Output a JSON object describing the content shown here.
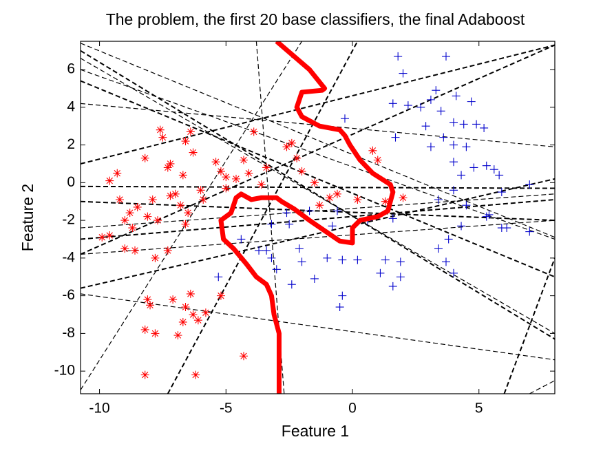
{
  "chart_data": {
    "type": "scatter",
    "title": "The problem, the first 20 base classifiers, the final Adaboost",
    "xlabel": "Feature 1",
    "ylabel": "Feature 2",
    "xlim": [
      -10.75,
      8
    ],
    "ylim": [
      -11.2,
      7.5
    ],
    "xticks": [
      -10,
      -5,
      0,
      5
    ],
    "yticks": [
      -10,
      -8,
      -6,
      -4,
      -2,
      0,
      2,
      4,
      6
    ],
    "series": [
      {
        "color": "#ff0000",
        "marker": "asterisk",
        "x": [
          -9.6,
          -9.3,
          -9.2,
          -9.0,
          -8.8,
          -8.7,
          -8.5,
          -8.6,
          -9.0,
          -9.9,
          -9.6,
          -8.2,
          -8.1,
          -7.9,
          -7.7,
          -7.6,
          -7.5,
          -7.3,
          -7.2,
          -7.0,
          -7.2,
          -6.8,
          -6.7,
          -6.6,
          -6.6,
          -6.4,
          -6.3,
          -6.0,
          -5.9,
          -5.4,
          -5.2,
          -5.0,
          -4.6,
          -4.3,
          -4.1,
          -3.9,
          -3.6,
          -3.4,
          -2.6,
          -2.4,
          -2.2,
          -2.0,
          -1.5,
          -1.3,
          -0.9,
          -0.6,
          0.2,
          0.8,
          1.0,
          1.3,
          2.0,
          -7.8,
          -7.3,
          -8.1,
          -8.0,
          -8.2,
          -7.8,
          -7.1,
          -6.6,
          -6.7,
          -6.9,
          -6.4,
          -6.3,
          -6.1,
          -5.8,
          -6.2,
          -8.2,
          -5.2,
          -4.3,
          -6.5,
          -5.0
        ],
        "y": [
          0.1,
          0.5,
          -0.9,
          -2.0,
          -1.6,
          -2.4,
          -1.3,
          -3.6,
          -3.5,
          -2.9,
          -2.8,
          1.3,
          -1.8,
          -0.9,
          -2.0,
          2.8,
          2.4,
          0.8,
          -0.7,
          -0.6,
          1.0,
          -1.2,
          0.4,
          -2.2,
          2.2,
          2.7,
          1.6,
          -0.4,
          -0.9,
          1.1,
          0.6,
          0.3,
          0.2,
          1.2,
          0.5,
          2.7,
          -0.1,
          0.8,
          1.9,
          2.1,
          1.3,
          0.6,
          0.0,
          -1.2,
          -0.8,
          -0.6,
          -0.9,
          1.7,
          1.2,
          -1.0,
          -0.8,
          -4.0,
          -3.6,
          -6.2,
          -6.5,
          -7.8,
          -8.0,
          -6.2,
          -6.6,
          -7.4,
          -8.1,
          -5.9,
          -7.0,
          -7.3,
          -6.9,
          -10.2,
          -10.2,
          -6.0,
          -9.2,
          -1.6,
          -0.3
        ]
      },
      {
        "color": "#0000cc",
        "marker": "plus",
        "x": [
          1.8,
          2.0,
          3.7,
          3.3,
          4.1,
          4.7,
          1.6,
          2.2,
          2.7,
          3.1,
          3.5,
          3.6,
          4.0,
          4.4,
          4.9,
          5.2,
          2.9,
          -0.3,
          1.7,
          3.1,
          4.0,
          4.5,
          4.0,
          4.3,
          4.8,
          5.3,
          5.6,
          5.8,
          5.9,
          7.0,
          4.0,
          3.4,
          4.5,
          5.4,
          5.9,
          4.3,
          3.8,
          3.4,
          3.7,
          4.0,
          1.9,
          1.3,
          1.1,
          1.9,
          1.6,
          0.2,
          -0.4,
          -1.0,
          -1.5,
          -2.1,
          -2.0,
          -2.4,
          -3.2,
          -3.4,
          -3.7,
          -3.2,
          -4.4,
          -2.5,
          -2.6,
          -1.7,
          -0.6,
          -0.4,
          -0.5,
          -0.8,
          0.6,
          1.6,
          5.3,
          7.0,
          6.1,
          -5.3,
          -3.0
        ],
        "y": [
          6.7,
          5.8,
          6.7,
          4.9,
          4.6,
          4.3,
          4.2,
          4.1,
          4.0,
          4.4,
          3.8,
          2.4,
          3.2,
          3.1,
          3.1,
          2.9,
          3.0,
          3.4,
          2.4,
          1.9,
          2.0,
          1.9,
          1.1,
          0.4,
          0.8,
          0.9,
          0.7,
          0.4,
          -0.5,
          -0.1,
          -0.4,
          -0.9,
          -1.2,
          -1.7,
          -2.4,
          -2.3,
          -3.0,
          -3.5,
          -4.2,
          -4.8,
          -4.2,
          -4.1,
          -4.8,
          -5.0,
          -5.5,
          -4.1,
          -4.1,
          -4.0,
          -5.1,
          -3.5,
          -4.2,
          -5.4,
          -4.0,
          -3.6,
          -3.6,
          -2.2,
          -3.0,
          -2.2,
          -1.6,
          -1.5,
          -1.5,
          -6.0,
          -6.6,
          -2.3,
          -2.0,
          -1.9,
          -1.8,
          -2.6,
          -2.4,
          -5.0,
          -4.6
        ]
      }
    ],
    "classifiers": {
      "color": "#000000",
      "lines": [
        {
          "x": [
            -10.75,
            8
          ],
          "y": [
            1.0,
            7.3
          ]
        },
        {
          "x": [
            -10.75,
            8
          ],
          "y": [
            4.2,
            1.9
          ]
        },
        {
          "x": [
            -10.75,
            8
          ],
          "y": [
            -0.2,
            -0.3
          ]
        },
        {
          "x": [
            -10.75,
            8
          ],
          "y": [
            -2.4,
            -0.6
          ]
        },
        {
          "x": [
            -10.75,
            8
          ],
          "y": [
            -3.0,
            -0.9
          ]
        },
        {
          "x": [
            -10.75,
            8
          ],
          "y": [
            -3.8,
            -2.0
          ]
        },
        {
          "x": [
            -10.75,
            8
          ],
          "y": [
            -5.6,
            0.2
          ]
        },
        {
          "x": [
            -10.75,
            8
          ],
          "y": [
            -5.9,
            -9.4
          ]
        },
        {
          "x": [
            -10.75,
            8
          ],
          "y": [
            7.0,
            -8.3
          ]
        },
        {
          "x": [
            -10.75,
            8
          ],
          "y": [
            6.0,
            -3.0
          ]
        },
        {
          "x": [
            -10.75,
            8
          ],
          "y": [
            5.4,
            -5.0
          ]
        },
        {
          "x": [
            -10.75,
            8
          ],
          "y": [
            7.4,
            -2.9
          ]
        },
        {
          "x": [
            -10.75,
            8
          ],
          "y": [
            -3.8,
            7.3
          ]
        },
        {
          "x": [
            -3.8,
            -2.7
          ],
          "y": [
            7.5,
            -11.2
          ]
        },
        {
          "x": [
            -7.3,
            0.2
          ],
          "y": [
            -11.2,
            7.5
          ]
        },
        {
          "x": [
            -10.75,
            -2.0
          ],
          "y": [
            -11.0,
            7.5
          ]
        },
        {
          "x": [
            6.0,
            8
          ],
          "y": [
            -11.2,
            -4.0
          ]
        },
        {
          "x": [
            7.0,
            8
          ],
          "y": [
            -11.2,
            -10.5
          ]
        },
        {
          "x": [
            -10.75,
            8
          ],
          "y": [
            -1.0,
            -2.0
          ]
        },
        {
          "x": [
            -10.75,
            8
          ],
          "y": [
            6.6,
            -8.0
          ]
        }
      ]
    },
    "boundary": {
      "color": "#ff0000",
      "x": [
        -3.0,
        -1.7,
        -1.1,
        -1.2,
        -2.0,
        -2.2,
        -2.0,
        -1.3,
        -0.5,
        -0.3,
        -0.1,
        0.3,
        0.8,
        1.5,
        1.6,
        1.4,
        1.0,
        0.3,
        0.0,
        0.0,
        -0.5,
        -1.7,
        -2.3,
        -2.8,
        -3.0,
        -3.6,
        -4.0,
        -4.4,
        -4.6,
        -4.8,
        -5.2,
        -5.1,
        -4.7,
        -4.2,
        -3.8,
        -3.4,
        -3.2,
        -3.1,
        -2.9,
        -2.9,
        -2.9
      ],
      "y": [
        7.5,
        6.0,
        5.0,
        4.9,
        4.8,
        4.0,
        3.5,
        3.0,
        2.8,
        2.5,
        2.0,
        1.2,
        0.5,
        -0.1,
        -0.5,
        -1.5,
        -1.8,
        -2.0,
        -2.4,
        -3.2,
        -3.1,
        -2.0,
        -1.4,
        -1.0,
        -0.8,
        -0.8,
        -0.9,
        -0.6,
        -0.8,
        -1.6,
        -2.0,
        -3.0,
        -3.5,
        -4.3,
        -5.0,
        -5.4,
        -6.0,
        -7.0,
        -8.0,
        -9.0,
        -11.2
      ]
    }
  }
}
